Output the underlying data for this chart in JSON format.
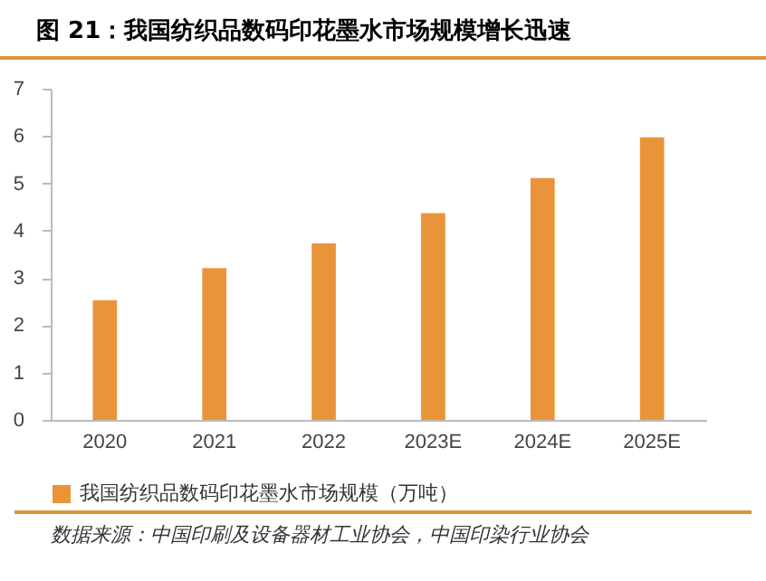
{
  "chart_data": {
    "type": "bar",
    "title": "图 21：我国纺织品数码印花墨水市场规模增长迅速",
    "categories": [
      "2020",
      "2021",
      "2022",
      "2023E",
      "2024E",
      "2025E"
    ],
    "series": [
      {
        "name": "我国纺织品数码印花墨水市场规模（万吨）",
        "color": "#ea9439",
        "values": [
          2.53,
          3.21,
          3.73,
          4.37,
          5.11,
          5.97
        ]
      }
    ],
    "ylim": [
      0,
      7
    ],
    "yticks": [
      0,
      1,
      2,
      3,
      4,
      5,
      6,
      7
    ],
    "grid": false,
    "legend": "bottom",
    "annotations": [
      "数据来源：中国印刷及设备器材工业协会，中国印染行业协会"
    ]
  }
}
